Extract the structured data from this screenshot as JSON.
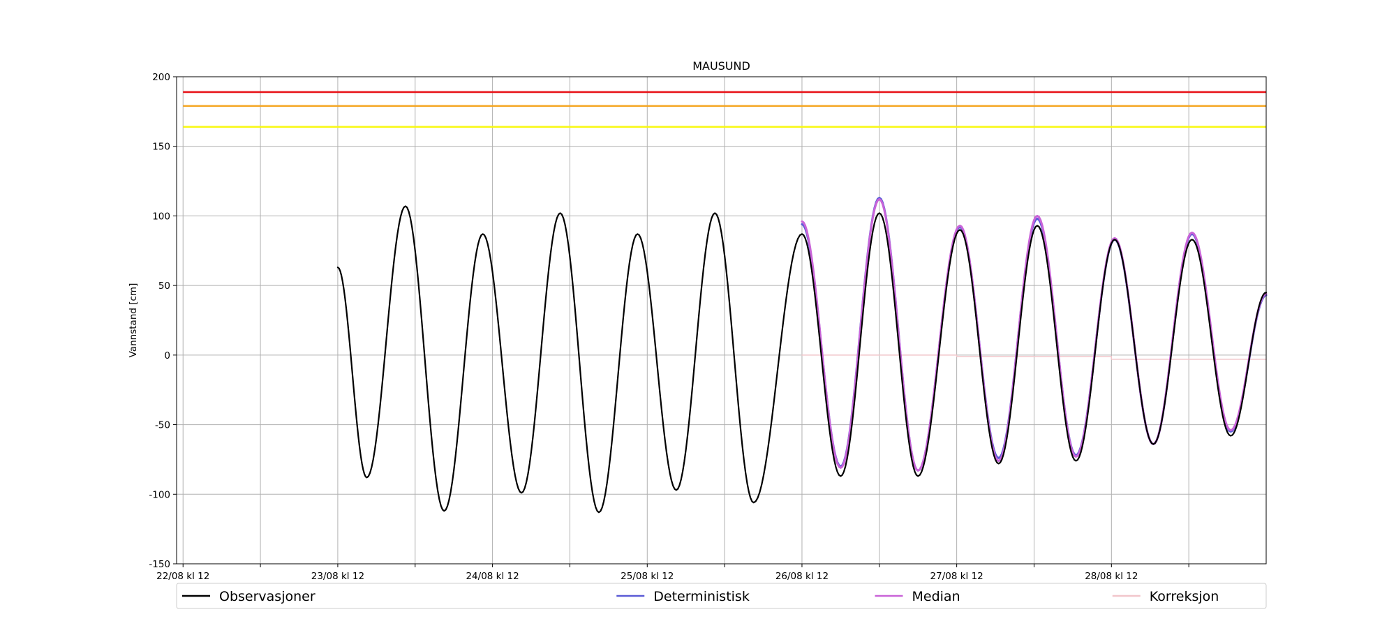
{
  "chart_data": {
    "type": "line",
    "title": "MAUSUND",
    "ylabel": "Vannstand [cm]",
    "xlabel": "",
    "ylim": [
      -150,
      200
    ],
    "x_unit": "hours since 22/08 kl 12",
    "xlim": [
      -1,
      168
    ],
    "yticks": [
      200,
      150,
      100,
      50,
      0,
      -50,
      -100,
      -150
    ],
    "xticks": [
      {
        "x": 0,
        "label": "22/08 kl 12"
      },
      {
        "x": 12,
        "label": ""
      },
      {
        "x": 24,
        "label": "23/08 kl 12"
      },
      {
        "x": 36,
        "label": ""
      },
      {
        "x": 48,
        "label": "24/08 kl 12"
      },
      {
        "x": 60,
        "label": ""
      },
      {
        "x": 72,
        "label": "25/08 kl 12"
      },
      {
        "x": 84,
        "label": ""
      },
      {
        "x": 96,
        "label": "26/08 kl 12"
      },
      {
        "x": 108,
        "label": ""
      },
      {
        "x": 120,
        "label": "27/08 kl 12"
      },
      {
        "x": 132,
        "label": ""
      },
      {
        "x": 144,
        "label": "28/08 kl 12"
      },
      {
        "x": 156,
        "label": ""
      }
    ],
    "grid": true,
    "legend_position": "bottom",
    "thresholds": [
      {
        "y": 189,
        "color": "#e8141a"
      },
      {
        "y": 179,
        "color": "#f5a623"
      },
      {
        "y": 164,
        "color": "#f8f816"
      }
    ],
    "series": [
      {
        "name": "Observasjoner",
        "color": "#000000",
        "points": [
          [
            24,
            63
          ],
          [
            28.5,
            -88
          ],
          [
            34.5,
            107
          ],
          [
            40.5,
            -112
          ],
          [
            46.5,
            87
          ],
          [
            52.5,
            -99
          ],
          [
            58.5,
            102
          ],
          [
            64.5,
            -113
          ],
          [
            70.5,
            87
          ],
          [
            76.5,
            -97
          ],
          [
            82.5,
            102
          ],
          [
            88.5,
            -106
          ],
          [
            96,
            87
          ],
          [
            102,
            -87
          ],
          [
            108,
            102
          ],
          [
            114,
            -87
          ],
          [
            120.5,
            90
          ],
          [
            126.5,
            -78
          ],
          [
            132.5,
            93
          ],
          [
            138.5,
            -76
          ],
          [
            144.5,
            83
          ],
          [
            150.5,
            -64
          ],
          [
            156.5,
            83
          ],
          [
            162.5,
            -58
          ],
          [
            168,
            45
          ]
        ]
      },
      {
        "name": "Deterministisk",
        "color": "#5b5bd6",
        "points": [
          [
            96,
            94
          ],
          [
            102,
            -80
          ],
          [
            108,
            113
          ],
          [
            114,
            -83
          ],
          [
            120.5,
            92
          ],
          [
            126.5,
            -74
          ],
          [
            132.5,
            98
          ],
          [
            138.5,
            -72
          ],
          [
            144.5,
            83
          ],
          [
            150.5,
            -64
          ],
          [
            156.5,
            87
          ],
          [
            162.5,
            -55
          ],
          [
            168,
            43
          ]
        ]
      },
      {
        "name": "Median",
        "color": "#c964d8",
        "points": [
          [
            96,
            96
          ],
          [
            102,
            -81
          ],
          [
            108,
            112
          ],
          [
            114,
            -83
          ],
          [
            120.5,
            93
          ],
          [
            126.5,
            -76
          ],
          [
            132.5,
            100
          ],
          [
            138.5,
            -73
          ],
          [
            144.5,
            84
          ],
          [
            150.5,
            -64
          ],
          [
            156.5,
            88
          ],
          [
            162.5,
            -54
          ],
          [
            168,
            44
          ]
        ]
      },
      {
        "name": "Korreksjon",
        "color": "#f2c6cb",
        "points": [
          [
            96,
            0
          ],
          [
            120,
            0
          ],
          [
            120,
            -1
          ],
          [
            144,
            -1
          ],
          [
            144,
            -3
          ],
          [
            168,
            -3
          ]
        ]
      }
    ]
  }
}
